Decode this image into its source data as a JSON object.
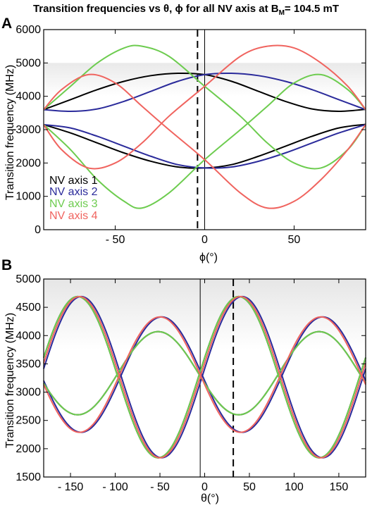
{
  "title": {
    "prefix": "Transition frequencies vs θ, ϕ for all NV axis at B",
    "sub": "M",
    "suffix": "= 104.5 mT"
  },
  "colors": {
    "NV axis 1": "#000000",
    "NV axis 2": "#2b2b9b",
    "NV axis 3": "#6dcc4f",
    "NV axis 4": "#f0645f"
  },
  "chart_data": [
    {
      "panel": "A",
      "type": "line",
      "xlabel": "ϕ(°)",
      "ylabel": "Transition frequency (MHz)",
      "xlim": [
        -90,
        90
      ],
      "ylim": [
        0,
        6000
      ],
      "xticks": [
        -50,
        0,
        50
      ],
      "xtick_labels": [
        "- 50",
        "0",
        "50"
      ],
      "yticks": [
        0,
        1000,
        2000,
        3000,
        4000,
        5000,
        6000
      ],
      "shaded_band": [
        4000,
        5000
      ],
      "vline_solid": 0,
      "vline_dashed": -4,
      "legend": [
        "NV axis 1",
        "NV axis 2",
        "NV axis 3",
        "NV axis 4"
      ],
      "legend_position": "lower-left",
      "series": [
        {
          "name": "NV axis 1",
          "x": [
            -90,
            -75,
            -60,
            -45,
            -30,
            -15,
            0,
            15,
            30,
            45,
            60,
            75,
            90
          ],
          "y_upper": [
            3600,
            3900,
            4200,
            4450,
            4620,
            4690,
            4650,
            4450,
            4150,
            3850,
            3620,
            3550,
            3610
          ],
          "y_lower": [
            3150,
            2900,
            2600,
            2300,
            2050,
            1880,
            1850,
            1950,
            2200,
            2500,
            2800,
            3050,
            3160
          ]
        },
        {
          "name": "NV axis 2",
          "x": [
            -90,
            -75,
            -60,
            -45,
            -30,
            -15,
            0,
            15,
            30,
            45,
            60,
            75,
            90
          ],
          "y_upper": [
            3600,
            3550,
            3620,
            3850,
            4150,
            4450,
            4650,
            4690,
            4620,
            4450,
            4200,
            3900,
            3600
          ],
          "y_lower": [
            3150,
            3050,
            2800,
            2500,
            2200,
            1950,
            1850,
            1880,
            2050,
            2300,
            2600,
            2900,
            3150
          ]
        },
        {
          "name": "NV axis 3",
          "x": [
            -90,
            -75,
            -60,
            -45,
            -35,
            -20,
            0,
            20,
            35,
            50,
            65,
            80,
            90
          ],
          "y_upper": [
            3600,
            4300,
            5000,
            5450,
            5500,
            5200,
            4300,
            3400,
            2600,
            2000,
            1850,
            2400,
            3150
          ],
          "y_lower": [
            3150,
            2400,
            1500,
            850,
            650,
            1100,
            2100,
            3000,
            3700,
            4400,
            4650,
            4200,
            3600
          ]
        },
        {
          "name": "NV axis 4",
          "x": [
            -90,
            -80,
            -65,
            -50,
            -35,
            -20,
            0,
            20,
            35,
            50,
            65,
            80,
            90
          ],
          "y_upper": [
            3600,
            4200,
            4650,
            4400,
            3700,
            3000,
            2100,
            1100,
            650,
            850,
            1500,
            2400,
            3150
          ],
          "y_lower": [
            3150,
            2400,
            1850,
            2000,
            2600,
            3400,
            4300,
            5200,
            5500,
            5450,
            5000,
            4300,
            3600
          ]
        }
      ]
    },
    {
      "panel": "B",
      "type": "line",
      "xlabel": "θ(°)",
      "ylabel": "Transition frequency (MHz)",
      "xlim": [
        -180,
        180
      ],
      "ylim": [
        1500,
        5000
      ],
      "xticks": [
        -150,
        -100,
        -50,
        0,
        50,
        100,
        150
      ],
      "xtick_labels": [
        "- 150",
        "- 100",
        "- 50",
        "0",
        "50",
        "100",
        "150"
      ],
      "yticks": [
        1500,
        2000,
        2500,
        3000,
        3500,
        4000,
        4500,
        5000
      ],
      "shaded_band": [
        3750,
        5000
      ],
      "vline_solid": -5,
      "vline_dashed": 32,
      "series": [
        {
          "name": "NV axis 1",
          "peak_offset": -142,
          "peak": 4690,
          "peak2": 4070,
          "base_upper": 1840,
          "base_lower": 2600
        },
        {
          "name": "NV axis 2",
          "peak_offset": -138,
          "peak": 4690,
          "peak2": 4330,
          "base_upper": 1840,
          "base_lower": 2290
        },
        {
          "name": "NV axis 3",
          "peak_offset": -142,
          "peak": 4690,
          "peak2": 4070,
          "base_upper": 1840,
          "base_lower": 2600
        },
        {
          "name": "NV axis 4",
          "peak_offset": -140,
          "peak": 4690,
          "peak2": 4330,
          "base_upper": 1840,
          "base_lower": 2290
        }
      ]
    }
  ]
}
